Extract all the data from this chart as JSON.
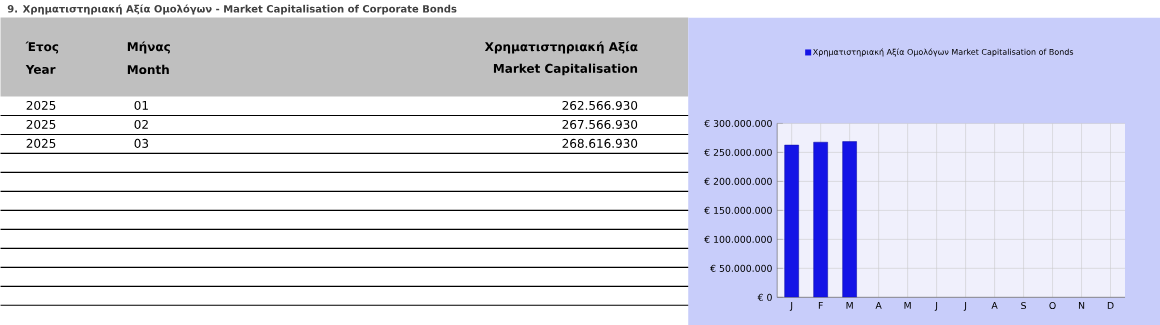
{
  "chart_data": {
    "type": "bar",
    "title": "9. Χρηματιστηριακή Αξία Ομολόγων - Market Capitalisation of Corporate Bonds",
    "annotations": [
      "Έτος",
      "Year",
      "Μήνας",
      "Month",
      "Χρηματιστηριακή Αξία",
      "Market Capitalisation",
      "2025",
      "01",
      "262.566.930",
      "2025",
      "02",
      "267.566.930",
      "2025",
      "03",
      "268.616.930"
    ],
    "categories": [
      "J",
      "F",
      "M",
      "A",
      "M",
      "J",
      "J",
      "A",
      "S",
      "O",
      "N",
      "D"
    ],
    "series": [
      {
        "name": "Χρηματιστηριακή Αξία Ομολόγων  Market Capitalisation of Bonds",
        "color": "#1414e6",
        "values": [
          262566930,
          267566930,
          268616930,
          null,
          null,
          null,
          null,
          null,
          null,
          null,
          null,
          null
        ]
      }
    ],
    "ylim": [
      0,
      300000000
    ],
    "yticks": [
      {
        "value": 0,
        "label": "€ 0"
      },
      {
        "value": 50000000,
        "label": "€ 50.000.000"
      },
      {
        "value": 100000000,
        "label": "€ 100.000.000"
      },
      {
        "value": 150000000,
        "label": "€ 150.000.000"
      },
      {
        "value": 200000000,
        "label": "€ 200.000.000"
      },
      {
        "value": 250000000,
        "label": "€ 250.000.000"
      },
      {
        "value": 300000000,
        "label": "€ 300.000.000"
      }
    ],
    "grid": true,
    "legend": "top"
  }
}
